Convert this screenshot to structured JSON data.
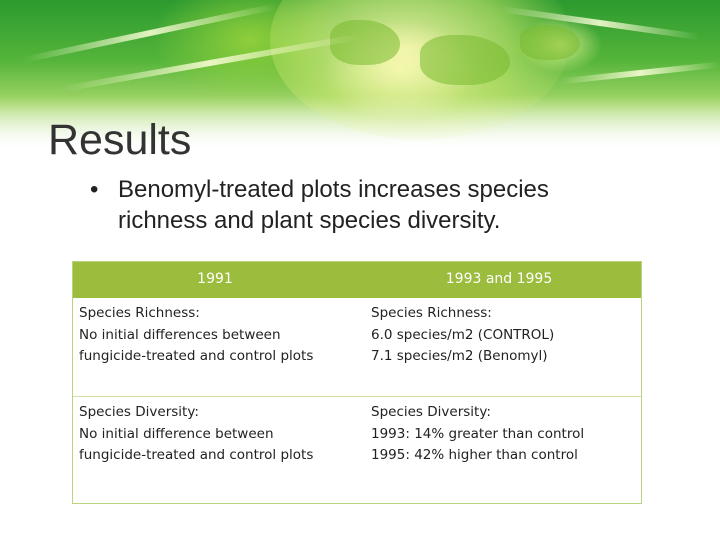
{
  "slide": {
    "title": "Results",
    "bullets": [
      {
        "line1": "Benomyl-treated plots increases species",
        "line2": "richness and plant species diversity."
      }
    ]
  },
  "table": {
    "headers": [
      "1991",
      "1993 and 1995"
    ],
    "rows": [
      {
        "left": [
          "Species Richness:",
          "No initial differences between",
          "fungicide-treated and control plots"
        ],
        "right": [
          "Species Richness:",
          "6.0 species/m2 (CONTROL)",
          "7.1 species/m2 (Benomyl)"
        ]
      },
      {
        "left": [
          "Species Diversity:",
          "No initial difference between",
          "fungicide-treated and control plots"
        ],
        "right": [
          "Species Diversity:",
          "1993: 14% greater than control",
          "1995: 42% higher than control"
        ]
      }
    ]
  },
  "colors": {
    "header_bg": "#9bbc3c",
    "banner_green": "#54b43a",
    "title_text": "#333333"
  }
}
